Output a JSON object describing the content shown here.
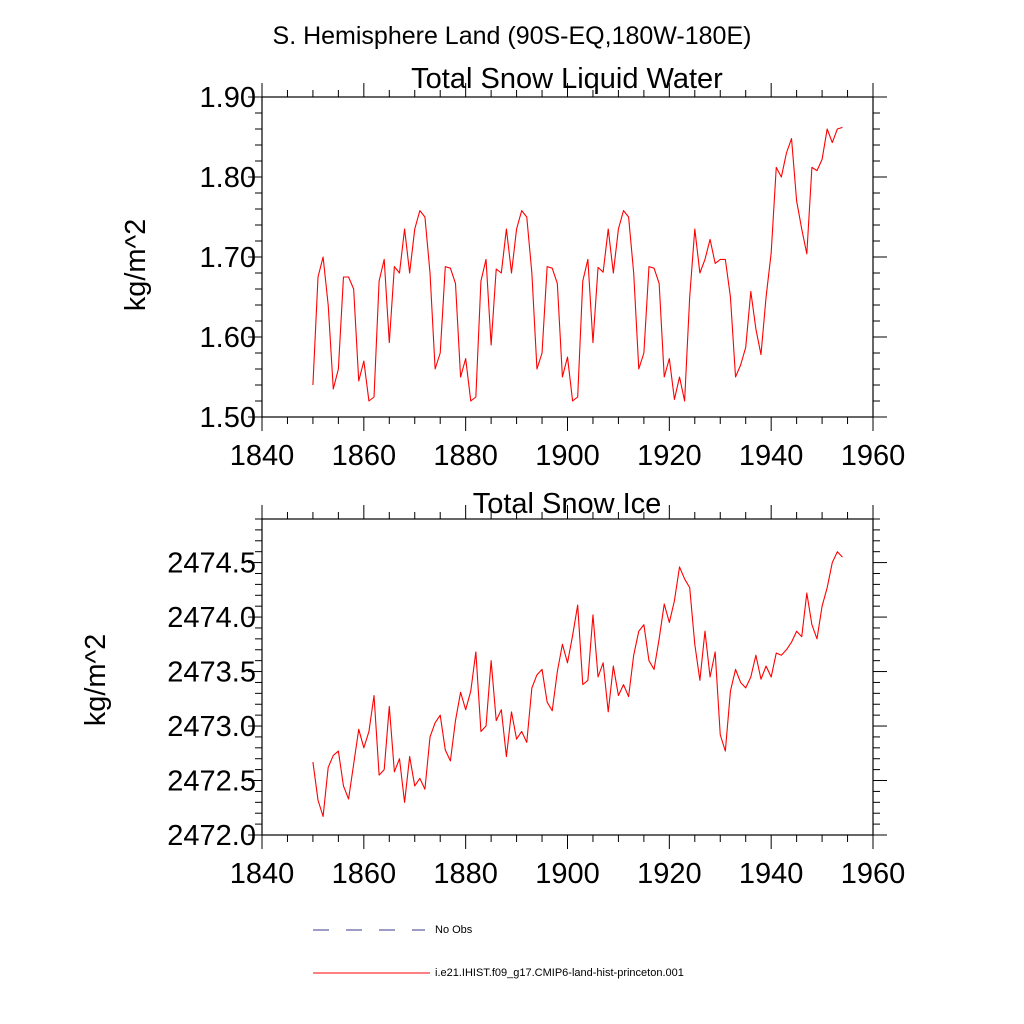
{
  "page_title": "S. Hemisphere Land (90S-EQ,180W-180E)",
  "colors": {
    "model_line": "#ff0000",
    "obs_line": "#3a3a8c",
    "axis": "#000000"
  },
  "legend": [
    {
      "label": "No Obs",
      "style": "dashed",
      "color": "#3a3a8c"
    },
    {
      "label": "i.e21.IHIST.f09_g17.CMIP6-land-hist-princeton.001",
      "style": "solid",
      "color": "#ff0000"
    }
  ],
  "chart_data": [
    {
      "type": "line",
      "title": "Total Snow Liquid Water",
      "xlabel": "",
      "ylabel": "kg/m^2",
      "xlim": [
        1840,
        1960
      ],
      "ylim": [
        1.5,
        1.9
      ],
      "xticks": [
        1840,
        1860,
        1880,
        1900,
        1920,
        1940,
        1960
      ],
      "yticks": [
        1.5,
        1.6,
        1.7,
        1.8,
        1.9
      ],
      "ytick_labels": [
        "1.50",
        "1.60",
        "1.70",
        "1.80",
        "1.90"
      ],
      "grid": false,
      "x_start": 1850,
      "series": [
        {
          "color": "#ff0000",
          "values": [
            1.54,
            1.675,
            1.7,
            1.64,
            1.535,
            1.56,
            1.675,
            1.675,
            1.66,
            1.545,
            1.57,
            1.52,
            1.525,
            1.67,
            1.697,
            1.593,
            1.688,
            1.68,
            1.735,
            1.68,
            1.735,
            1.758,
            1.75,
            1.68,
            1.56,
            1.58,
            1.688,
            1.686,
            1.667,
            1.55,
            1.573,
            1.52,
            1.525,
            1.67,
            1.697,
            1.59,
            1.685,
            1.68,
            1.735,
            1.68,
            1.735,
            1.758,
            1.75,
            1.68,
            1.56,
            1.58,
            1.688,
            1.686,
            1.667,
            1.55,
            1.575,
            1.52,
            1.525,
            1.67,
            1.697,
            1.593,
            1.687,
            1.681,
            1.735,
            1.68,
            1.735,
            1.758,
            1.75,
            1.68,
            1.56,
            1.58,
            1.688,
            1.686,
            1.667,
            1.55,
            1.573,
            1.522,
            1.55,
            1.52,
            1.65,
            1.735,
            1.68,
            1.697,
            1.722,
            1.692,
            1.697,
            1.697,
            1.65,
            1.55,
            1.565,
            1.587,
            1.657,
            1.61,
            1.578,
            1.65,
            1.705,
            1.812,
            1.8,
            1.83,
            1.848,
            1.77,
            1.735,
            1.704,
            1.812,
            1.808,
            1.822,
            1.86,
            1.843,
            1.86,
            1.862
          ]
        }
      ]
    },
    {
      "type": "line",
      "title": "Total Snow Ice",
      "xlabel": "",
      "ylabel": "kg/m^2",
      "xlim": [
        1840,
        1960
      ],
      "ylim": [
        2472.0,
        2474.9
      ],
      "xticks": [
        1840,
        1860,
        1880,
        1900,
        1920,
        1940,
        1960
      ],
      "yticks": [
        2472.0,
        2472.5,
        2473.0,
        2473.5,
        2474.0,
        2474.5
      ],
      "ytick_labels": [
        "2472.0",
        "2472.5",
        "2473.0",
        "2473.5",
        "2474.0",
        "2474.5"
      ],
      "grid": false,
      "x_start": 1850,
      "series": [
        {
          "color": "#ff0000",
          "values": [
            2472.67,
            2472.32,
            2472.17,
            2472.62,
            2472.73,
            2472.77,
            2472.45,
            2472.33,
            2472.65,
            2472.97,
            2472.8,
            2472.95,
            2473.28,
            2472.55,
            2472.6,
            2473.18,
            2472.58,
            2472.7,
            2472.3,
            2472.72,
            2472.45,
            2472.52,
            2472.42,
            2472.9,
            2473.03,
            2473.1,
            2472.78,
            2472.68,
            2473.05,
            2473.31,
            2473.15,
            2473.32,
            2473.68,
            2472.95,
            2473.0,
            2473.6,
            2473.05,
            2473.15,
            2472.72,
            2473.13,
            2472.88,
            2472.95,
            2472.85,
            2473.35,
            2473.47,
            2473.52,
            2473.22,
            2473.14,
            2473.5,
            2473.75,
            2473.58,
            2473.83,
            2474.11,
            2473.38,
            2473.42,
            2474.02,
            2473.45,
            2473.58,
            2473.13,
            2473.55,
            2473.28,
            2473.38,
            2473.27,
            2473.65,
            2473.87,
            2473.93,
            2473.6,
            2473.52,
            2473.8,
            2474.12,
            2473.95,
            2474.15,
            2474.46,
            2474.35,
            2474.27,
            2473.75,
            2473.42,
            2473.87,
            2473.45,
            2473.68,
            2472.92,
            2472.77,
            2473.32,
            2473.52,
            2473.4,
            2473.35,
            2473.45,
            2473.65,
            2473.43,
            2473.55,
            2473.45,
            2473.67,
            2473.65,
            2473.7,
            2473.77,
            2473.87,
            2473.82,
            2474.22,
            2473.93,
            2473.8,
            2474.1,
            2474.27,
            2474.5,
            2474.6,
            2474.55
          ]
        }
      ]
    }
  ]
}
